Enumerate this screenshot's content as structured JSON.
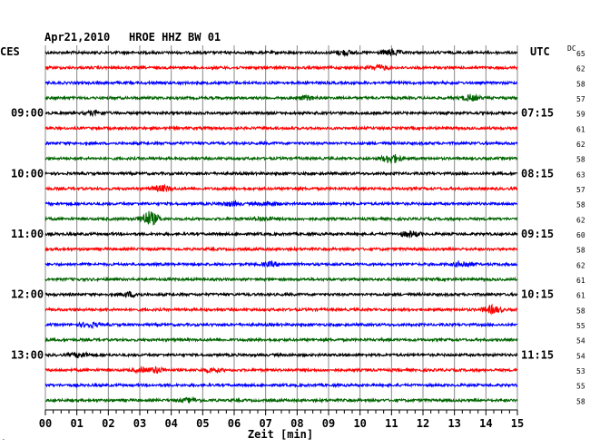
{
  "header": {
    "date": "Apr21,2010",
    "station": "HROE HHZ BW 01",
    "left_zone": "CES",
    "right_zone": "UTC",
    "dc_label": "DC"
  },
  "chart_data": {
    "type": "line",
    "title": "Apr21,2010  HROE HHZ BW 01",
    "xlabel": "Zeit [min]",
    "x_range": [
      0,
      15
    ],
    "x_ticks": [
      "00",
      "01",
      "02",
      "03",
      "04",
      "05",
      "06",
      "07",
      "08",
      "09",
      "10",
      "11",
      "12",
      "13",
      "14",
      "15"
    ],
    "grid": true,
    "trace_count": 24,
    "trace_colors": [
      "#000000",
      "#ff0000",
      "#0000ff",
      "#006400"
    ],
    "left_time_labels": [
      {
        "trace": 4,
        "text": "09:00"
      },
      {
        "trace": 8,
        "text": "10:00"
      },
      {
        "trace": 12,
        "text": "11:00"
      },
      {
        "trace": 16,
        "text": "12:00"
      },
      {
        "trace": 20,
        "text": "13:00"
      }
    ],
    "right_time_labels": [
      {
        "trace": 4,
        "text": "07:15"
      },
      {
        "trace": 8,
        "text": "08:15"
      },
      {
        "trace": 12,
        "text": "09:15"
      },
      {
        "trace": 16,
        "text": "10:15"
      },
      {
        "trace": 20,
        "text": "11:15"
      }
    ],
    "dc_values": [
      "65",
      "62",
      "58",
      "57",
      "59",
      "61",
      "62",
      "58",
      "63",
      "57",
      "58",
      "62",
      "60",
      "58",
      "62",
      "61",
      "61",
      "58",
      "55",
      "54",
      "54",
      "53",
      "55",
      "58"
    ],
    "events": [
      {
        "trace": 0,
        "minute": 9.5,
        "amplitude": 2.5
      },
      {
        "trace": 0,
        "minute": 11.0,
        "amplitude": 3
      },
      {
        "trace": 1,
        "minute": 10.6,
        "amplitude": 2.5
      },
      {
        "trace": 3,
        "minute": 8.3,
        "amplitude": 2
      },
      {
        "trace": 3,
        "minute": 13.5,
        "amplitude": 3
      },
      {
        "trace": 4,
        "minute": 1.6,
        "amplitude": 2
      },
      {
        "trace": 7,
        "minute": 11.0,
        "amplitude": 5
      },
      {
        "trace": 9,
        "minute": 3.7,
        "amplitude": 3
      },
      {
        "trace": 10,
        "minute": 5.9,
        "amplitude": 2
      },
      {
        "trace": 10,
        "minute": 7.1,
        "amplitude": 2
      },
      {
        "trace": 11,
        "minute": 3.3,
        "amplitude": 8
      },
      {
        "trace": 11,
        "minute": 6.9,
        "amplitude": 2
      },
      {
        "trace": 12,
        "minute": 11.6,
        "amplitude": 3
      },
      {
        "trace": 14,
        "minute": 7.2,
        "amplitude": 2
      },
      {
        "trace": 14,
        "minute": 13.3,
        "amplitude": 3
      },
      {
        "trace": 16,
        "minute": 2.7,
        "amplitude": 2.5
      },
      {
        "trace": 17,
        "minute": 14.2,
        "amplitude": 4
      },
      {
        "trace": 18,
        "minute": 1.4,
        "amplitude": 2.5
      },
      {
        "trace": 20,
        "minute": 1.1,
        "amplitude": 2.5
      },
      {
        "trace": 21,
        "minute": 3.1,
        "amplitude": 2
      },
      {
        "trace": 21,
        "minute": 3.5,
        "amplitude": 3
      },
      {
        "trace": 21,
        "minute": 5.3,
        "amplitude": 2
      },
      {
        "trace": 23,
        "minute": 4.6,
        "amplitude": 2
      }
    ]
  }
}
